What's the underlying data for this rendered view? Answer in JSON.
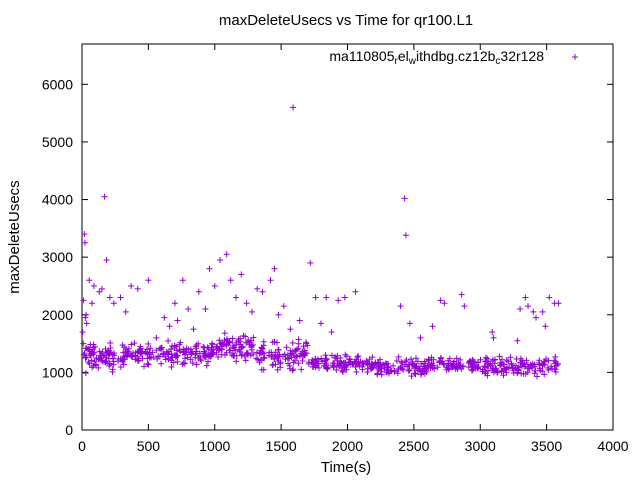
{
  "chart_data": {
    "type": "scatter",
    "title": "maxDeleteUsecs vs Time for qr100.L1",
    "xlabel": "Time(s)",
    "ylabel": "maxDeleteUsecs",
    "xlim": [
      0,
      4000
    ],
    "ylim": [
      0,
      6700
    ],
    "xticks": [
      0,
      500,
      1000,
      1500,
      2000,
      2500,
      3000,
      3500,
      4000
    ],
    "yticks": [
      0,
      1000,
      2000,
      3000,
      4000,
      5000,
      6000
    ],
    "grid": false,
    "legend_position": "top-right",
    "marker": "+",
    "color": "#9400d3",
    "series": [
      {
        "name": "ma110805_rel_withdbg.cz12b_c32r128",
        "legend_parts": [
          {
            "text": "ma110805",
            "sub": false
          },
          {
            "text": "r",
            "sub": true
          },
          {
            "text": "el",
            "sub": false
          },
          {
            "text": "w",
            "sub": true
          },
          {
            "text": "ithdbg.cz12b",
            "sub": false
          },
          {
            "text": "c",
            "sub": true
          },
          {
            "text": "32r128",
            "sub": false
          }
        ],
        "points": [
          [
            5,
            1700
          ],
          [
            10,
            1500
          ],
          [
            12,
            2250
          ],
          [
            18,
            3400
          ],
          [
            22,
            3250
          ],
          [
            25,
            1950
          ],
          [
            30,
            2000
          ],
          [
            35,
            1850
          ],
          [
            45,
            1400
          ],
          [
            55,
            2600
          ],
          [
            60,
            1300
          ],
          [
            75,
            2200
          ],
          [
            90,
            2500
          ],
          [
            110,
            1250
          ],
          [
            130,
            2400
          ],
          [
            150,
            2450
          ],
          [
            170,
            4050
          ],
          [
            185,
            2950
          ],
          [
            210,
            2300
          ],
          [
            240,
            2200
          ],
          [
            290,
            2300
          ],
          [
            330,
            2050
          ],
          [
            370,
            2500
          ],
          [
            420,
            2450
          ],
          [
            500,
            2600
          ],
          [
            560,
            1600
          ],
          [
            620,
            1950
          ],
          [
            660,
            1800
          ],
          [
            700,
            2200
          ],
          [
            720,
            1900
          ],
          [
            760,
            2600
          ],
          [
            800,
            2100
          ],
          [
            840,
            1750
          ],
          [
            880,
            2400
          ],
          [
            930,
            2100
          ],
          [
            960,
            2800
          ],
          [
            1000,
            2500
          ],
          [
            1040,
            2950
          ],
          [
            1090,
            3050
          ],
          [
            1120,
            2600
          ],
          [
            1160,
            2300
          ],
          [
            1200,
            2700
          ],
          [
            1240,
            2200
          ],
          [
            1280,
            2050
          ],
          [
            1320,
            2450
          ],
          [
            1360,
            2400
          ],
          [
            1420,
            2600
          ],
          [
            1450,
            2800
          ],
          [
            1480,
            2000
          ],
          [
            1520,
            2150
          ],
          [
            1570,
            1750
          ],
          [
            1590,
            5600
          ],
          [
            1640,
            1900
          ],
          [
            1690,
            1500
          ],
          [
            1720,
            2900
          ],
          [
            1760,
            2300
          ],
          [
            1800,
            1850
          ],
          [
            1840,
            2300
          ],
          [
            1880,
            1700
          ],
          [
            1930,
            2250
          ],
          [
            1980,
            2300
          ],
          [
            2060,
            2400
          ],
          [
            2400,
            2150
          ],
          [
            2430,
            4020
          ],
          [
            2440,
            3380
          ],
          [
            2470,
            1850
          ],
          [
            2550,
            1600
          ],
          [
            2640,
            1800
          ],
          [
            2700,
            2250
          ],
          [
            2730,
            2200
          ],
          [
            2860,
            2350
          ],
          [
            2880,
            2150
          ],
          [
            3090,
            1700
          ],
          [
            3100,
            1600
          ],
          [
            3280,
            1550
          ],
          [
            3300,
            2100
          ],
          [
            3340,
            2300
          ],
          [
            3360,
            2150
          ],
          [
            3400,
            2050
          ],
          [
            3420,
            1950
          ],
          [
            3470,
            2050
          ],
          [
            3490,
            1800
          ],
          [
            3520,
            2300
          ],
          [
            3560,
            2200
          ],
          [
            3590,
            2200
          ]
        ],
        "bands": [
          {
            "x_start": 0,
            "x_end": 300,
            "y_min": 900,
            "y_max": 1600,
            "count": 75
          },
          {
            "x_start": 300,
            "x_end": 1000,
            "y_min": 1050,
            "y_max": 1600,
            "count": 170
          },
          {
            "x_start": 1000,
            "x_end": 1300,
            "y_min": 1150,
            "y_max": 1750,
            "count": 80
          },
          {
            "x_start": 1300,
            "x_end": 1700,
            "y_min": 950,
            "y_max": 1650,
            "count": 95
          },
          {
            "x_start": 1700,
            "x_end": 2200,
            "y_min": 950,
            "y_max": 1350,
            "count": 110
          },
          {
            "x_start": 2200,
            "x_end": 2600,
            "y_min": 850,
            "y_max": 1300,
            "count": 90
          },
          {
            "x_start": 2600,
            "x_end": 3000,
            "y_min": 950,
            "y_max": 1300,
            "count": 90
          },
          {
            "x_start": 3000,
            "x_end": 3600,
            "y_min": 850,
            "y_max": 1350,
            "count": 130
          }
        ]
      }
    ]
  }
}
